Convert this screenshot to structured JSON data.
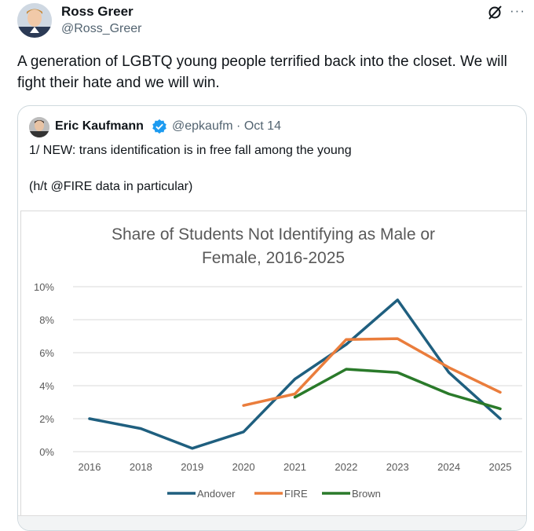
{
  "tweet": {
    "author_name": "Ross Greer",
    "author_handle": "@Ross_Greer",
    "text": "A generation of LGBTQ young people terrified back into the closet. We will fight their hate and we will win.",
    "more_label": "···"
  },
  "quoted_tweet": {
    "author_name": "Eric Kaufmann",
    "author_handle": "@epkaufm · Oct 14",
    "line1": "1/ NEW: trans identification is in free fall among the young",
    "line2": "(h/t @FIRE data in particular)"
  },
  "colors": {
    "andover": "#1f5f7f",
    "fire": "#ea7d3c",
    "brown": "#2a7a2a",
    "verified": "#1d9bf0"
  },
  "chart_data": {
    "type": "line",
    "title_line1": "Share of Students Not Identifying as Male or",
    "title_line2": "Female, 2016-2025",
    "categories": [
      "2016",
      "2018",
      "2019",
      "2020",
      "2021",
      "2022",
      "2023",
      "2024",
      "2025"
    ],
    "yticks": [
      "0%",
      "2%",
      "4%",
      "6%",
      "8%",
      "10%"
    ],
    "ylim": [
      0,
      10
    ],
    "grid": true,
    "legend_position": "bottom",
    "series": [
      {
        "name": "Andover",
        "values": [
          2.0,
          1.4,
          0.2,
          1.2,
          4.4,
          6.5,
          9.2,
          4.8,
          2.0
        ]
      },
      {
        "name": "FIRE",
        "values": [
          null,
          null,
          null,
          2.8,
          3.5,
          6.8,
          6.85,
          5.1,
          3.6
        ]
      },
      {
        "name": "Brown",
        "values": [
          null,
          null,
          null,
          null,
          3.3,
          5.0,
          4.8,
          3.5,
          2.6
        ]
      }
    ]
  }
}
